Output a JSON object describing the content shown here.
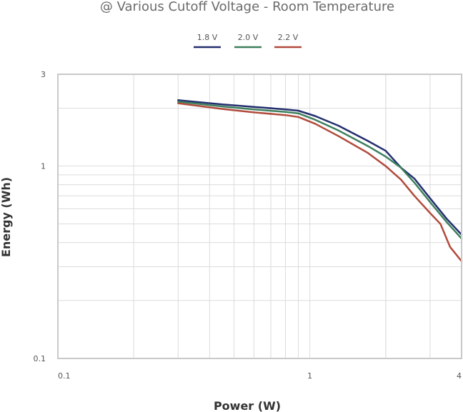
{
  "chart_data": {
    "type": "line",
    "title": "@ Various Cutoff Voltage - Room Temperature",
    "xlabel": "Power (W)",
    "ylabel": "Energy (Wh)",
    "xscale": "log",
    "yscale": "log",
    "xlim": [
      0.1,
      4
    ],
    "ylim": [
      0.1,
      3
    ],
    "xticks": [
      {
        "value": 0.1,
        "label": "0.1"
      },
      {
        "value": 1,
        "label": "1"
      },
      {
        "value": 4,
        "label": "4"
      }
    ],
    "yticks": [
      {
        "value": 0.1,
        "label": "0.1"
      },
      {
        "value": 1,
        "label": "1"
      },
      {
        "value": 3,
        "label": "3"
      }
    ],
    "grid": true,
    "legend_position": "top-center",
    "series": [
      {
        "name": "1.8 V",
        "color": "#232f6e",
        "points": [
          [
            0.3,
            2.2
          ],
          [
            0.45,
            2.09
          ],
          [
            0.6,
            2.03
          ],
          [
            0.8,
            1.97
          ],
          [
            0.9,
            1.94
          ],
          [
            1.05,
            1.82
          ],
          [
            1.3,
            1.62
          ],
          [
            1.7,
            1.35
          ],
          [
            2.0,
            1.2
          ],
          [
            2.3,
            0.98
          ],
          [
            2.6,
            0.86
          ],
          [
            3.0,
            0.68
          ],
          [
            3.5,
            0.53
          ],
          [
            4.0,
            0.44
          ]
        ]
      },
      {
        "name": "2.0 V",
        "color": "#3e7f5e",
        "points": [
          [
            0.3,
            2.16
          ],
          [
            0.45,
            2.04
          ],
          [
            0.6,
            1.97
          ],
          [
            0.8,
            1.91
          ],
          [
            0.9,
            1.88
          ],
          [
            1.05,
            1.74
          ],
          [
            1.3,
            1.53
          ],
          [
            1.7,
            1.27
          ],
          [
            2.0,
            1.12
          ],
          [
            2.3,
            0.98
          ],
          [
            2.6,
            0.82
          ],
          [
            3.0,
            0.65
          ],
          [
            3.5,
            0.51
          ],
          [
            4.0,
            0.42
          ]
        ]
      },
      {
        "name": "2.2 V",
        "color": "#b14a3b",
        "points": [
          [
            0.3,
            2.12
          ],
          [
            0.45,
            1.98
          ],
          [
            0.6,
            1.9
          ],
          [
            0.8,
            1.84
          ],
          [
            0.9,
            1.8
          ],
          [
            1.05,
            1.66
          ],
          [
            1.3,
            1.43
          ],
          [
            1.7,
            1.17
          ],
          [
            2.0,
            1.0
          ],
          [
            2.3,
            0.85
          ],
          [
            2.6,
            0.7
          ],
          [
            3.0,
            0.57
          ],
          [
            3.3,
            0.5
          ],
          [
            3.6,
            0.38
          ],
          [
            4.0,
            0.32
          ]
        ]
      }
    ]
  }
}
